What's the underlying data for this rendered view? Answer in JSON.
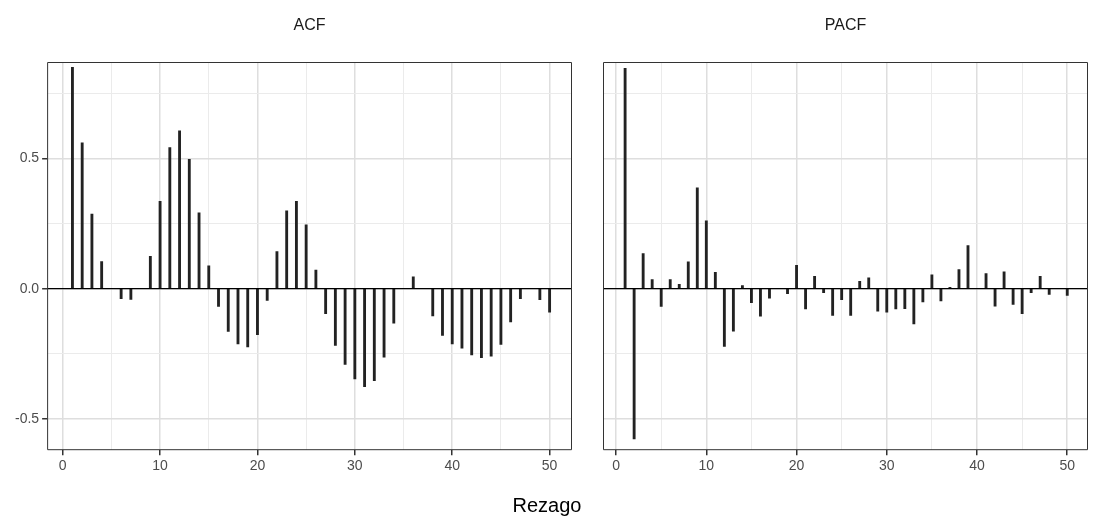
{
  "chart_data": [
    {
      "type": "bar",
      "title": "ACF",
      "xlabel": "Rezago",
      "x": [
        1,
        2,
        3,
        4,
        5,
        6,
        7,
        8,
        9,
        10,
        11,
        12,
        13,
        14,
        15,
        16,
        17,
        18,
        19,
        20,
        21,
        22,
        23,
        24,
        25,
        26,
        27,
        28,
        29,
        30,
        31,
        32,
        33,
        34,
        35,
        36,
        37,
        38,
        39,
        40,
        41,
        42,
        43,
        44,
        45,
        46,
        47,
        48,
        49,
        50
      ],
      "series": [
        {
          "color": "#222222",
          "values": [
            0.85,
            0.56,
            0.286,
            0.104,
            0,
            -0.038,
            -0.041,
            0,
            0.124,
            0.335,
            0.542,
            0.606,
            0.496,
            0.291,
            0.088,
            -0.068,
            -0.164,
            -0.212,
            -0.224,
            -0.177,
            -0.045,
            0.142,
            0.299,
            0.335,
            0.245,
            0.071,
            -0.096,
            -0.218,
            -0.291,
            -0.346,
            -0.376,
            -0.353,
            -0.263,
            -0.132,
            0,
            0.045,
            0,
            -0.105,
            -0.179,
            -0.212,
            -0.228,
            -0.254,
            -0.265,
            -0.259,
            -0.214,
            -0.128,
            -0.038,
            0,
            -0.042,
            -0.09
          ]
        }
      ],
      "xlim": [
        -1.6,
        52.3
      ],
      "xticks": [
        0,
        {
          "value": 5,
          "label": null
        },
        10,
        {
          "value": 15,
          "label": null
        },
        20,
        {
          "value": 25,
          "label": null
        },
        30,
        {
          "value": 35,
          "label": null
        },
        40,
        {
          "value": 45,
          "label": null
        },
        50
      ],
      "ylim": [
        -0.62,
        0.87
      ],
      "yticks": [
        {
          "value": -0.5,
          "label": "-0.5"
        },
        {
          "value": -0.25,
          "label": null
        },
        {
          "value": 0,
          "label": "0.0"
        },
        {
          "value": 0.25,
          "label": null
        },
        {
          "value": 0.5,
          "label": "0.5"
        },
        {
          "value": 0.75,
          "label": null
        }
      ],
      "ref_lines": [
        {
          "axis": "y",
          "value": 0,
          "color": "#000000"
        }
      ],
      "grid": true,
      "legend": false
    },
    {
      "type": "bar",
      "title": "PACF",
      "x": [
        1,
        2,
        3,
        4,
        5,
        6,
        7,
        8,
        9,
        10,
        11,
        12,
        13,
        14,
        15,
        16,
        17,
        18,
        19,
        20,
        21,
        22,
        23,
        24,
        25,
        26,
        27,
        28,
        29,
        30,
        31,
        32,
        33,
        34,
        35,
        36,
        37,
        38,
        39,
        40,
        41,
        42,
        43,
        44,
        45,
        46,
        47,
        48,
        49,
        50
      ],
      "series": [
        {
          "color": "#222222",
          "values": [
            0.846,
            -0.577,
            0.135,
            0.035,
            -0.068,
            0.035,
            0.017,
            0.103,
            0.387,
            0.26,
            0.063,
            -0.222,
            -0.163,
            0.012,
            -0.054,
            -0.106,
            -0.036,
            0,
            -0.019,
            0.09,
            -0.078,
            0.047,
            -0.015,
            -0.103,
            -0.042,
            -0.103,
            0.028,
            0.042,
            -0.086,
            -0.09,
            -0.078,
            -0.077,
            -0.135,
            -0.051,
            0.053,
            -0.047,
            0.005,
            0.073,
            0.165,
            0,
            0.058,
            -0.067,
            0.065,
            -0.06,
            -0.096,
            -0.015,
            0.047,
            -0.022,
            0,
            -0.026
          ]
        }
      ],
      "xlim": [
        -1.45,
        52.3
      ],
      "xticks": [
        0,
        {
          "value": 5,
          "label": null
        },
        10,
        {
          "value": 15,
          "label": null
        },
        20,
        {
          "value": 25,
          "label": null
        },
        30,
        {
          "value": 35,
          "label": null
        },
        40,
        {
          "value": 45,
          "label": null
        },
        50
      ],
      "ylim": [
        -0.62,
        0.87
      ],
      "yticks": [
        -0.5,
        {
          "value": -0.25,
          "label": null
        },
        0,
        {
          "value": 0.25,
          "label": null
        },
        0.5,
        {
          "value": 0.75,
          "label": null
        }
      ],
      "ref_lines": [
        {
          "axis": "y",
          "value": 0,
          "color": "#000000"
        }
      ],
      "grid": true,
      "legend": false,
      "tick_labels": "x"
    }
  ]
}
